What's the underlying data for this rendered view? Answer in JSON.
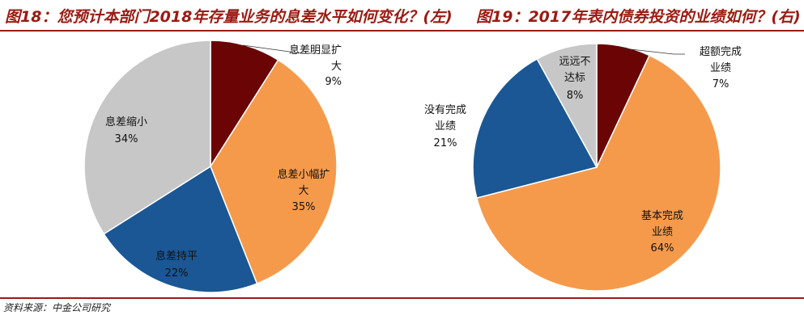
{
  "header": {
    "left_title": "图18：您预计本部门2018年存量业务的息差水平如何变化？(左)",
    "right_title": "图19：2017年表内债券投资的业绩如何？(右)"
  },
  "footer": {
    "source": "资料来源：中金公司研究"
  },
  "chart_data": [
    {
      "type": "pie",
      "title": "图18：您预计本部门2018年存量业务的息差水平如何变化？(左)",
      "slices": [
        {
          "label": "息差明显扩大",
          "value": 9,
          "display": "9%",
          "color": "#6b0505"
        },
        {
          "label": "息差小幅扩大",
          "value": 35,
          "display": "35%",
          "color": "#f59a4b"
        },
        {
          "label": "息差持平",
          "value": 22,
          "display": "22%",
          "color": "#1a5794"
        },
        {
          "label": "息差缩小",
          "value": 34,
          "display": "34%",
          "color": "#c7c7c7"
        }
      ],
      "start": "12 o'clock",
      "direction": "clockwise"
    },
    {
      "type": "pie",
      "title": "图19：2017年表内债券投资的业绩如何？(右)",
      "slices": [
        {
          "label": "超额完成业绩",
          "value": 7,
          "display": "7%",
          "color": "#6b0505"
        },
        {
          "label": "基本完成业绩",
          "value": 64,
          "display": "64%",
          "color": "#f59a4b"
        },
        {
          "label": "没有完成业绩",
          "value": 21,
          "display": "21%",
          "color": "#1a5794"
        },
        {
          "label": "远远不达标",
          "value": 8,
          "display": "8%",
          "color": "#c7c7c7"
        }
      ],
      "start": "12 o'clock",
      "direction": "clockwise"
    }
  ]
}
